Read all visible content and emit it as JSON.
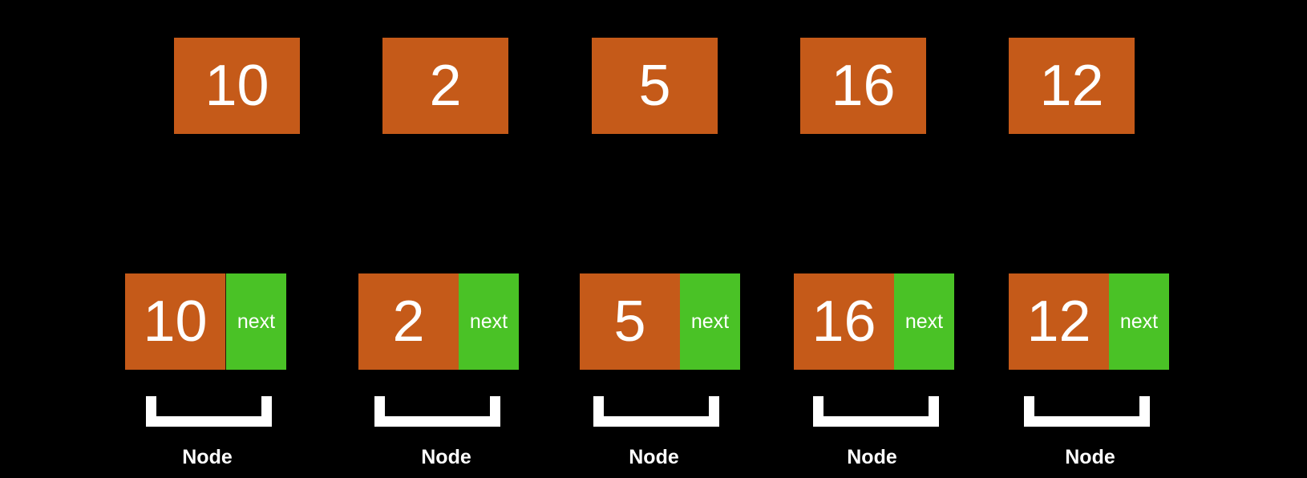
{
  "values": [
    "10",
    "2",
    "5",
    "16",
    "12"
  ],
  "nodes": [
    {
      "value": "10",
      "next_label": "next",
      "caption": "Node"
    },
    {
      "value": "2",
      "next_label": "next",
      "caption": "Node"
    },
    {
      "value": "5",
      "next_label": "next",
      "caption": "Node"
    },
    {
      "value": "16",
      "next_label": "next",
      "caption": "Node"
    },
    {
      "value": "12",
      "next_label": "next",
      "caption": "Node"
    }
  ],
  "colors": {
    "background": "#000000",
    "data_cell": "#c55a19",
    "next_cell": "#4ac226",
    "text": "#ffffff",
    "bracket": "#ffffff"
  }
}
